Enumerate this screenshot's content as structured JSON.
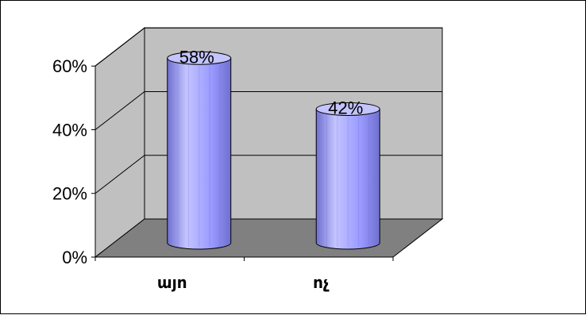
{
  "chart_data": {
    "type": "bar",
    "categories": [
      "այո",
      "ոչ"
    ],
    "values": [
      58,
      42
    ],
    "data_labels": [
      "58%",
      "42%"
    ],
    "yticks": [
      "0%",
      "20%",
      "40%",
      "60%"
    ],
    "ylim": [
      0,
      60
    ],
    "grid": true,
    "style": "3d-cylinder",
    "colors": {
      "bar": "#9999ff",
      "bar_dark": "#6f6fd0",
      "bar_light": "#c4c4ff",
      "floor": "#808080",
      "wall": "#c0c0c0",
      "outline": "#000000"
    }
  }
}
